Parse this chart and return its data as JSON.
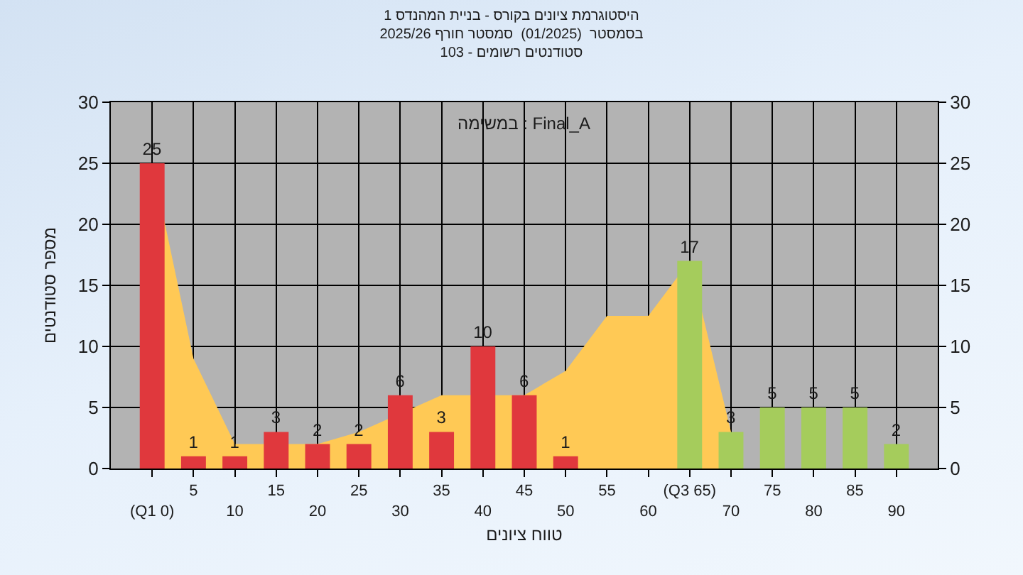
{
  "chart_data": {
    "type": "bar",
    "title": "היסטוגרמת ציונים בקורס - בניית המהנדס 1\nבסמסטר  (01/2025)  סמסטר חורף 2025/26\nסטודנטים רשומים - 103",
    "xlabel": "טווח ציונים",
    "ylabel": "מספר סטודנטים",
    "annotations": [
      "במשימה : Final_A"
    ],
    "categories": [
      "(Q1 0)",
      "5",
      "10",
      "15",
      "20",
      "25",
      "30",
      "35",
      "40",
      "45",
      "50",
      "55",
      "60",
      "(Q3 65)",
      "70",
      "75",
      "80",
      "85",
      "90"
    ],
    "series": [
      {
        "type": "area",
        "color": "#ffc955",
        "values": [
          25,
          9,
          2,
          null,
          2,
          3,
          null,
          6,
          null,
          6,
          8,
          12.5,
          12.5,
          17,
          3,
          null,
          null,
          null,
          null
        ]
      },
      {
        "colors": [
          "#e0383d",
          "#e0383d",
          "#e0383d",
          "#e0383d",
          "#e0383d",
          "#e0383d",
          "#e0383d",
          "#e0383d",
          "#e0383d",
          "#e0383d",
          "#e0383d",
          "#e0383d",
          "#e0383d",
          "#a5cc5c",
          "#a5cc5c",
          "#a5cc5c",
          "#a5cc5c",
          "#a5cc5c",
          "#a5cc5c"
        ],
        "values": [
          25,
          1,
          1,
          3,
          2,
          2,
          6,
          3,
          10,
          6,
          1,
          null,
          null,
          17,
          3,
          5,
          5,
          5,
          2
        ],
        "value_labels": [
          "25",
          "1",
          "1",
          "3",
          "2",
          "2",
          "6",
          "3",
          "10",
          "6",
          "1",
          null,
          null,
          "17",
          "3",
          "5",
          "5",
          "5",
          "2"
        ]
      }
    ],
    "ylim": [
      0,
      30
    ],
    "yticks": [
      0,
      5,
      10,
      15,
      20,
      25,
      30
    ],
    "y2lim": [
      0,
      30
    ],
    "y2ticks": [
      0,
      5,
      10,
      15,
      20,
      25,
      30
    ],
    "grid": true
  }
}
